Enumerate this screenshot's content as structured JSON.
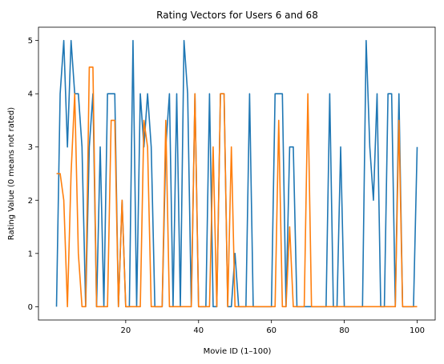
{
  "chart_data": {
    "type": "line",
    "title": "Rating Vectors for Users 6 and 68",
    "xlabel": "Movie ID (1–100)",
    "ylabel": "Rating Value (0 means not rated)",
    "xlim": [
      -3.95,
      104.95
    ],
    "ylim": [
      -0.25,
      5.25
    ],
    "xticks": [
      20,
      40,
      60,
      80,
      100
    ],
    "yticks": [
      0,
      1,
      2,
      3,
      4,
      5
    ],
    "grid": false,
    "x": [
      1,
      2,
      3,
      4,
      5,
      6,
      7,
      8,
      9,
      10,
      11,
      12,
      13,
      14,
      15,
      16,
      17,
      18,
      19,
      20,
      21,
      22,
      23,
      24,
      25,
      26,
      27,
      28,
      29,
      30,
      31,
      32,
      33,
      34,
      35,
      36,
      37,
      38,
      39,
      40,
      41,
      42,
      43,
      44,
      45,
      46,
      47,
      48,
      49,
      50,
      51,
      52,
      53,
      54,
      55,
      56,
      57,
      58,
      59,
      60,
      61,
      62,
      63,
      64,
      65,
      66,
      67,
      68,
      69,
      70,
      71,
      72,
      73,
      74,
      75,
      76,
      77,
      78,
      79,
      80,
      81,
      82,
      83,
      84,
      85,
      86,
      87,
      88,
      89,
      90,
      91,
      92,
      93,
      94,
      95,
      96,
      97,
      98,
      99,
      100
    ],
    "series": [
      {
        "color": "#1f77b4",
        "values": [
          0,
          4,
          5,
          3,
          5,
          4,
          4,
          3,
          0,
          3,
          4,
          0,
          3,
          0,
          4,
          4,
          4,
          0,
          2,
          0,
          0,
          5,
          0,
          4,
          3,
          4,
          3,
          0,
          0,
          0,
          3,
          4,
          0,
          4,
          0,
          5,
          4,
          0,
          4,
          0,
          0,
          0,
          4,
          0,
          0,
          4,
          4,
          0,
          0,
          1,
          0,
          0,
          0,
          4,
          0,
          0,
          0,
          0,
          0,
          0,
          4,
          4,
          4,
          0,
          3,
          3,
          0,
          0,
          0,
          0,
          0,
          0,
          0,
          0,
          0,
          4,
          0,
          0,
          3,
          0,
          0,
          0,
          0,
          0,
          0,
          5,
          3,
          2,
          4,
          0,
          0,
          4,
          4,
          0,
          4,
          0,
          0,
          0,
          0,
          3
        ]
      },
      {
        "color": "#ff7f0e",
        "values": [
          2.5,
          2.5,
          2,
          0,
          2.5,
          4,
          1,
          0,
          0,
          4.5,
          4.5,
          0,
          0,
          0,
          0,
          3.5,
          3.5,
          0,
          2,
          0,
          0,
          0,
          0,
          0,
          3.5,
          3,
          0,
          0,
          0,
          0,
          3.5,
          0,
          0,
          0,
          0,
          0,
          0,
          0,
          4,
          0,
          0,
          0,
          0,
          3,
          0,
          4,
          4,
          0,
          3,
          0,
          0,
          0,
          0,
          0,
          0,
          0,
          0,
          0,
          0,
          0,
          0,
          3.5,
          0,
          0,
          1.5,
          0,
          0,
          0,
          0,
          4,
          0,
          0,
          0,
          0,
          0,
          0,
          0,
          0,
          0,
          0,
          0,
          0,
          0,
          0,
          0,
          0,
          0,
          0,
          0,
          0,
          0,
          0,
          0,
          0,
          3.5,
          0,
          0,
          0,
          0,
          0
        ]
      }
    ]
  }
}
